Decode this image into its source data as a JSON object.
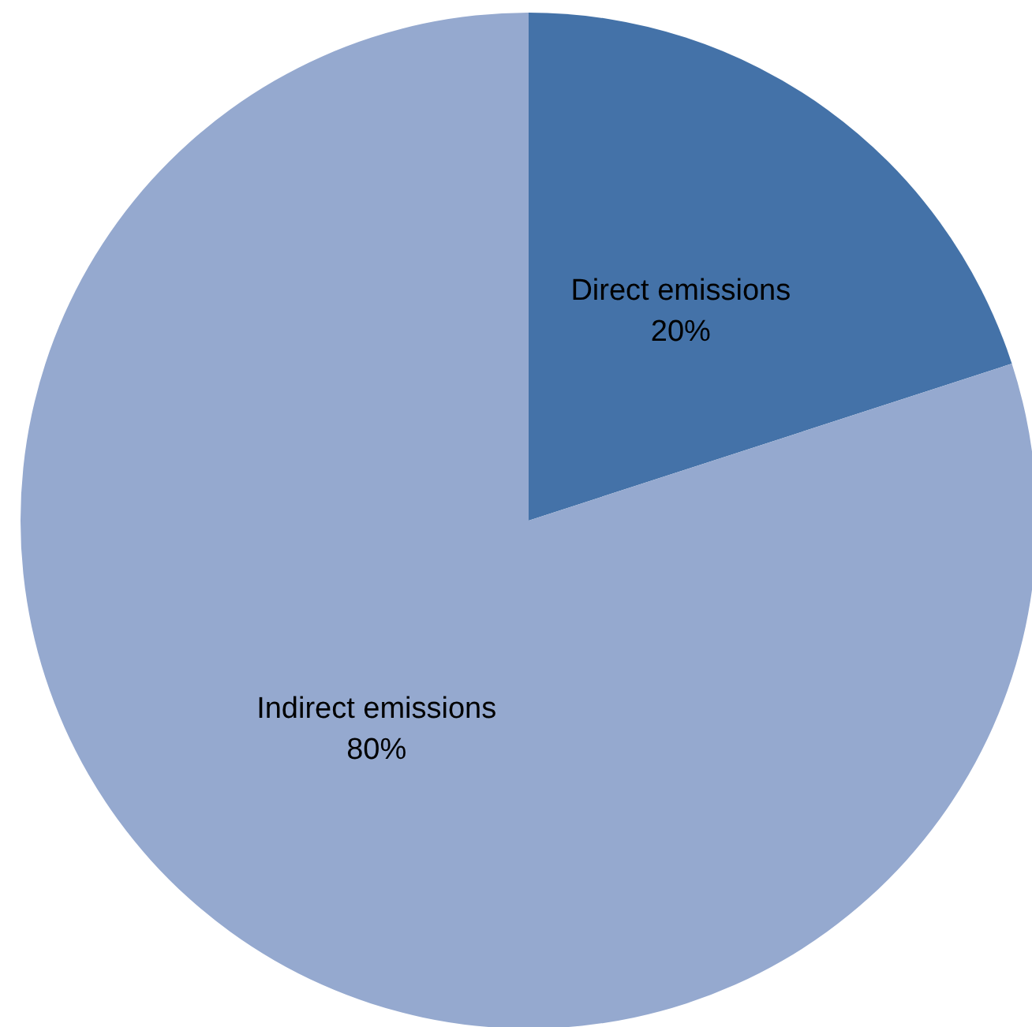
{
  "chart_data": {
    "type": "pie",
    "categories": [
      "Direct emissions",
      "Indirect emissions"
    ],
    "values": [
      20,
      80
    ],
    "colors": [
      "#4472a8",
      "#95a9cf"
    ],
    "value_labels": [
      "20%",
      "80%"
    ],
    "legend": false
  }
}
